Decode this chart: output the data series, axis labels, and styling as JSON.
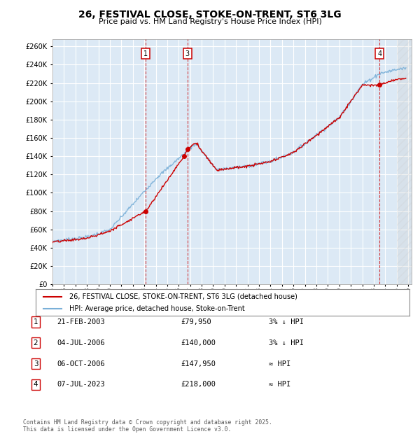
{
  "title": "26, FESTIVAL CLOSE, STOKE-ON-TRENT, ST6 3LG",
  "subtitle": "Price paid vs. HM Land Registry's House Price Index (HPI)",
  "ytick_values": [
    0,
    20000,
    40000,
    60000,
    80000,
    100000,
    120000,
    140000,
    160000,
    180000,
    200000,
    220000,
    240000,
    260000
  ],
  "ylim": [
    0,
    268000
  ],
  "xlim_start": 1995.0,
  "xlim_end": 2026.3,
  "background_color": "#dce9f5",
  "grid_color": "#ffffff",
  "hpi_line_color": "#7ab0d8",
  "price_line_color": "#cc0000",
  "legend_label_price": "26, FESTIVAL CLOSE, STOKE-ON-TRENT, ST6 3LG (detached house)",
  "legend_label_hpi": "HPI: Average price, detached house, Stoke-on-Trent",
  "transactions": [
    {
      "id": 1,
      "date_label": "21-FEB-2003",
      "price": 79950,
      "note": "3% ↓ HPI",
      "year": 2003.13,
      "show_vline": true
    },
    {
      "id": 2,
      "date_label": "04-JUL-2006",
      "price": 140000,
      "note": "3% ↓ HPI",
      "year": 2006.5,
      "show_vline": false
    },
    {
      "id": 3,
      "date_label": "06-OCT-2006",
      "price": 147950,
      "note": "≈ HPI",
      "year": 2006.76,
      "show_vline": true
    },
    {
      "id": 4,
      "date_label": "07-JUL-2023",
      "price": 218000,
      "note": "≈ HPI",
      "year": 2023.51,
      "show_vline": true
    }
  ],
  "footer_text": "Contains HM Land Registry data © Crown copyright and database right 2025.\nThis data is licensed under the Open Government Licence v3.0.",
  "hatch_region_start": 2025.0,
  "hatch_region_end": 2026.5
}
